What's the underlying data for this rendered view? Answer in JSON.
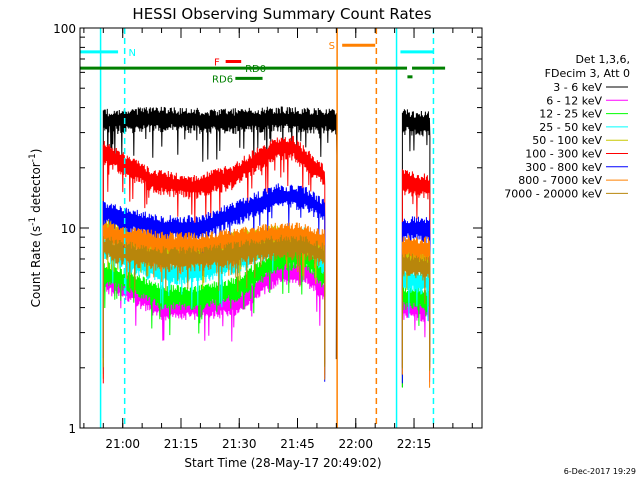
{
  "chart_data": {
    "type": "line",
    "title": "HESSI Observing Summary Count Rates",
    "ylabel": "Count Rate (s⁻¹ detector⁻¹)",
    "ylabel_main": "Count Rate (s",
    "ylabel_exp1": "-1",
    "ylabel_mid": " detector",
    "ylabel_exp2": "-1",
    "ylabel_end": ")",
    "xlabel": "Start Time (28-May-17 20:49:02)",
    "yscale": "log",
    "ylim": [
      1,
      100
    ],
    "xlim": [
      "20:49",
      "22:32"
    ],
    "y_tick_labels": [
      "1",
      "10",
      "100"
    ],
    "x_ticks": [
      {
        "t": 60,
        "label": "21:00"
      },
      {
        "t": 75,
        "label": "21:15"
      },
      {
        "t": 90,
        "label": "21:30"
      },
      {
        "t": 105,
        "label": "21:45"
      },
      {
        "t": 120,
        "label": "22:00"
      },
      {
        "t": 135,
        "label": "22:15"
      }
    ],
    "legend": {
      "header1": "Det 1,3,6,",
      "header2": "FDecim 3, Att 0",
      "placement": "right"
    },
    "series": [
      {
        "name": "3 - 6 keV",
        "color": "#000000",
        "segments": [
          {
            "x": [
              55,
              70,
              85,
              100,
              115
            ],
            "y": [
              34,
              35,
              34,
              35,
              34
            ]
          },
          {
            "x": [
              132,
              139
            ],
            "y": [
              34,
              33
            ]
          }
        ]
      },
      {
        "name": "6 - 12 keV",
        "color": "#ff00ff",
        "segments": [
          {
            "x": [
              55,
              60,
              70,
              80,
              90,
              100,
              107,
              112
            ],
            "y": [
              5.5,
              5.0,
              4.0,
              4.0,
              4.2,
              6.0,
              6.0,
              4.8
            ]
          },
          {
            "x": [
              132,
              139
            ],
            "y": [
              4.0,
              3.9
            ]
          }
        ]
      },
      {
        "name": "12 - 25 keV",
        "color": "#00ff00",
        "segments": [
          {
            "x": [
              55,
              60,
              70,
              80,
              90,
              100,
              107,
              112
            ],
            "y": [
              6.0,
              5.5,
              4.5,
              4.5,
              5.0,
              7.0,
              7.2,
              5.5
            ]
          },
          {
            "x": [
              132,
              139
            ],
            "y": [
              4.5,
              4.4
            ]
          }
        ]
      },
      {
        "name": "25 - 50 keV",
        "color": "#00ffff",
        "segments": [
          {
            "x": [
              55,
              60,
              70,
              80,
              90,
              100,
              107,
              112
            ],
            "y": [
              8.0,
              7.0,
              6.0,
              6.0,
              6.8,
              8.5,
              8.8,
              6.5
            ]
          },
          {
            "x": [
              132,
              139
            ],
            "y": [
              5.5,
              5.3
            ]
          }
        ]
      },
      {
        "name": "50 - 100 keV",
        "color": "#c8c800",
        "segments": [
          {
            "x": [
              55,
              60,
              70,
              80,
              90,
              100,
              107,
              112
            ],
            "y": [
              10,
              9.0,
              7.5,
              7.5,
              8.5,
              9.0,
              8.5,
              7.5
            ]
          },
          {
            "x": [
              132,
              139
            ],
            "y": [
              7.0,
              6.8
            ]
          }
        ]
      },
      {
        "name": "100 - 300 keV",
        "color": "#ff0000",
        "segments": [
          {
            "x": [
              55,
              60,
              68,
              78,
              88,
              95,
              100,
              104,
              108,
              112
            ],
            "y": [
              24,
              21,
              17,
              16,
              18,
              22,
              25,
              25,
              21,
              18
            ]
          },
          {
            "x": [
              132,
              139
            ],
            "y": [
              17,
              16
            ]
          }
        ]
      },
      {
        "name": "300 - 800 keV",
        "color": "#0000ff",
        "segments": [
          {
            "x": [
              55,
              60,
              70,
              80,
              90,
              100,
              107,
              112
            ],
            "y": [
              12,
              11,
              10,
              10,
              12,
              14.5,
              14,
              12
            ]
          },
          {
            "x": [
              132,
              139
            ],
            "y": [
              10,
              9.8
            ]
          }
        ]
      },
      {
        "name": "800 - 7000 keV",
        "color": "#ff8000",
        "segments": [
          {
            "x": [
              55,
              60,
              70,
              80,
              90,
              100,
              105,
              112
            ],
            "y": [
              9.5,
              9.0,
              8.3,
              8.2,
              8.7,
              9.2,
              9.3,
              8.5
            ]
          },
          {
            "x": [
              132,
              139
            ],
            "y": [
              8.0,
              7.8
            ]
          }
        ]
      },
      {
        "name": "7000 - 20000 keV",
        "color": "#b8860b",
        "segments": [
          {
            "x": [
              55,
              60,
              70,
              80,
              90,
              100,
              107,
              112
            ],
            "y": [
              8.0,
              7.5,
              7.0,
              7.0,
              7.5,
              8.0,
              8.0,
              7.2
            ]
          },
          {
            "x": [
              132,
              139
            ],
            "y": [
              6.5,
              6.3
            ]
          }
        ]
      }
    ],
    "vertical_lines": [
      {
        "t": 54.3,
        "color": "#00ffff",
        "style": "solid"
      },
      {
        "t": 60.5,
        "color": "#00ffff",
        "style": "dashed"
      },
      {
        "t": 115.2,
        "color": "#ff8000",
        "style": "solid"
      },
      {
        "t": 125.3,
        "color": "#ff8000",
        "style": "dashed"
      },
      {
        "t": 130.5,
        "color": "#00ffff",
        "style": "solid"
      },
      {
        "t": 140,
        "color": "#00ffff",
        "style": "dashed"
      }
    ],
    "flag_bars": [
      {
        "label": "N",
        "color": "#00ffff",
        "y": 76,
        "t0": 49,
        "t1": 58.8,
        "lx": 61.5
      },
      {
        "label": "",
        "color": "#00ffff",
        "y": 76,
        "t0": 131.5,
        "t1": 140,
        "lx": null
      },
      {
        "label": "S",
        "color": "#ff8000",
        "y": 82,
        "t0": 116.5,
        "t1": 125,
        "lx": 113
      },
      {
        "label": "F",
        "color": "#ff0000",
        "y": 68,
        "t0": 86.5,
        "t1": 90.5,
        "lx": 83.5
      },
      {
        "label": "RD0",
        "color": "#008000",
        "y": 63,
        "t0": 49,
        "t1": 143,
        "lx": 91.5
      },
      {
        "label": "RD6",
        "color": "#008000",
        "y": 56,
        "t0": 89,
        "t1": 96,
        "lx": 83
      }
    ],
    "timestamp": "6-Dec-2017 19:29"
  }
}
